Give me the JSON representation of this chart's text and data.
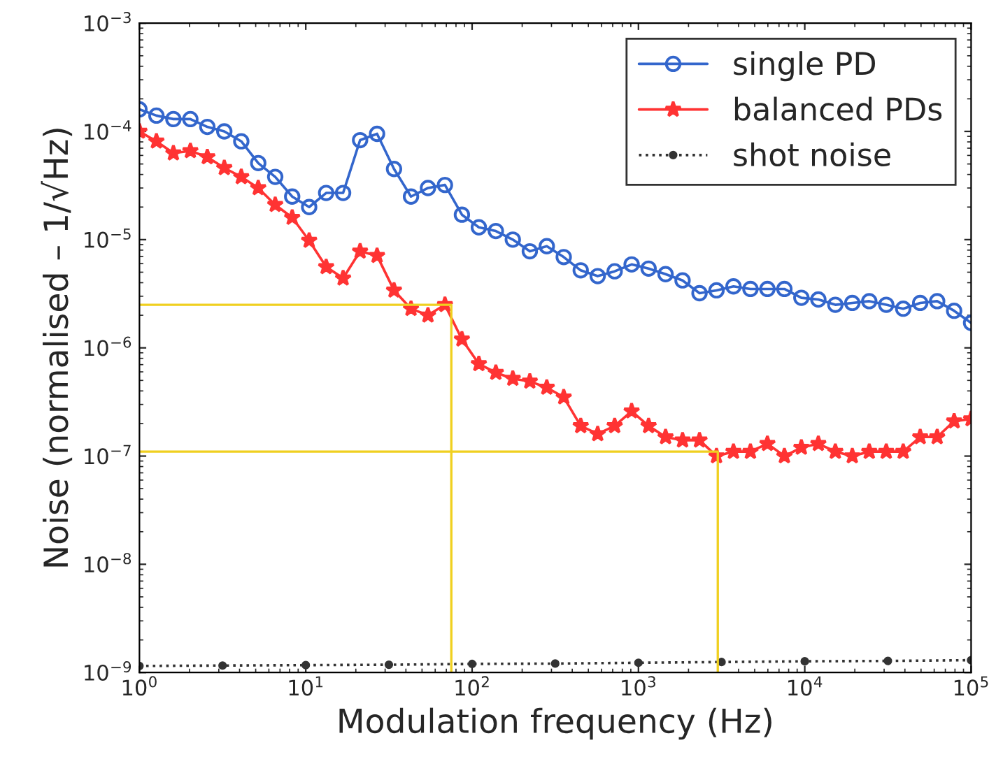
{
  "chart_data": {
    "type": "line",
    "xlabel": "Modulation frequency (Hz)",
    "ylabel": "Noise (normalised – 1/√Hz)",
    "log": "xy",
    "grid": false,
    "legend": "top right",
    "xlim": [
      1,
      100000
    ],
    "ylim": [
      1e-09,
      0.001
    ],
    "xticks": [
      {
        "value": 1,
        "label": "10$^{0}$"
      },
      {
        "value": 10,
        "label": "10$^{1}$"
      },
      {
        "value": 100,
        "label": "10$^{2}$"
      },
      {
        "value": 1000,
        "label": "10$^{3}$"
      },
      {
        "value": 10000,
        "label": "10$^{4}$"
      },
      {
        "value": 100000,
        "label": "10$^{5}$"
      }
    ],
    "yticks": [
      {
        "value": 1e-09,
        "label": "10$^{−9}$"
      },
      {
        "value": 1e-08,
        "label": "10$^{−8}$"
      },
      {
        "value": 1e-07,
        "label": "10$^{−7}$"
      },
      {
        "value": 1e-06,
        "label": "10$^{−6}$"
      },
      {
        "value": 1e-05,
        "label": "10$^{−5}$"
      },
      {
        "value": 0.0001,
        "label": "10$^{−4}$"
      },
      {
        "value": 0.001,
        "label": "10$^{−3}$"
      }
    ],
    "x": [
      1,
      1.265,
      1.6,
      2.024,
      2.56,
      3.237,
      4.095,
      5.179,
      6.551,
      8.286,
      10.48,
      13.26,
      16.77,
      21.21,
      26.83,
      33.93,
      42.92,
      54.29,
      68.66,
      86.85,
      109.8,
      138.9,
      175.7,
      222.3,
      281.2,
      355.6,
      449.8,
      568.9,
      719.6,
      910.2,
      1151,
      1456,
      1842,
      2329,
      2947,
      3727,
      4714,
      5963,
      7543,
      9541,
      12068,
      15265,
      19309,
      24423,
      30892,
      39075,
      49426,
      62518,
      79079,
      100000
    ],
    "series": [
      {
        "name": "single PD",
        "color": "#3366cc",
        "marker": "circle",
        "line_style": "solid",
        "values": [
          0.00016,
          0.00014,
          0.00013,
          0.00013,
          0.00011,
          0.0001,
          8.1e-05,
          5.1e-05,
          3.8e-05,
          2.5e-05,
          2e-05,
          2.7e-05,
          2.7e-05,
          8.3e-05,
          9.5e-05,
          4.5e-05,
          2.5e-05,
          3e-05,
          3.2e-05,
          1.7e-05,
          1.3e-05,
          1.2e-05,
          1e-05,
          7.8e-06,
          8.7e-06,
          6.9e-06,
          5.2e-06,
          4.6e-06,
          5.1e-06,
          5.9e-06,
          5.4e-06,
          4.8e-06,
          4.2e-06,
          3.2e-06,
          3.4e-06,
          3.7e-06,
          3.5e-06,
          3.5e-06,
          3.5e-06,
          2.9e-06,
          2.8e-06,
          2.5e-06,
          2.6e-06,
          2.7e-06,
          2.5e-06,
          2.3e-06,
          2.6e-06,
          2.7e-06,
          2.2e-06,
          1.7e-06
        ]
      },
      {
        "name": "balanced PDs",
        "color": "#ff3333",
        "marker": "star",
        "line_style": "solid",
        "values": [
          0.0001,
          8.1e-05,
          6.3e-05,
          6.6e-05,
          5.8e-05,
          4.6e-05,
          3.8e-05,
          3e-05,
          2.1e-05,
          1.6e-05,
          9.8e-06,
          5.6e-06,
          4.4e-06,
          7.8e-06,
          7.1e-06,
          3.4e-06,
          2.3e-06,
          2e-06,
          2.5e-06,
          1.2e-06,
          7.1e-07,
          5.9e-07,
          5.2e-07,
          4.9e-07,
          4.3e-07,
          3.5e-07,
          1.9e-07,
          1.6e-07,
          1.9e-07,
          2.6e-07,
          1.9e-07,
          1.5e-07,
          1.4e-07,
          1.4e-07,
          1e-07,
          1.1e-07,
          1.1e-07,
          1.3e-07,
          1e-07,
          1.2e-07,
          1.3e-07,
          1.1e-07,
          1e-07,
          1.1e-07,
          1.1e-07,
          1.1e-07,
          1.5e-07,
          1.5e-07,
          2.1e-07,
          2.2e-07
        ]
      },
      {
        "name": "shot noise",
        "color": "#333333",
        "marker": "circle",
        "line_style": "dotted",
        "x": [
          1,
          3.16,
          10,
          31.6,
          100,
          316,
          1000,
          3160,
          10000,
          31600,
          100000
        ],
        "values": [
          1.15e-09,
          1.16e-09,
          1.17e-09,
          1.18e-09,
          1.2e-09,
          1.21e-09,
          1.23e-09,
          1.25e-09,
          1.27e-09,
          1.28e-09,
          1.3e-09
        ]
      },
      {
        "color": "#f0d020",
        "marker": "none",
        "line_style": "solid",
        "x": [
          1,
          75,
          75
        ],
        "values": [
          2.5e-06,
          2.5e-06,
          1e-09
        ]
      },
      {
        "color": "#f0d020",
        "marker": "none",
        "line_style": "solid",
        "x": [
          1,
          3000,
          3000
        ],
        "values": [
          1.1e-07,
          1.1e-07,
          1e-09
        ]
      }
    ]
  }
}
